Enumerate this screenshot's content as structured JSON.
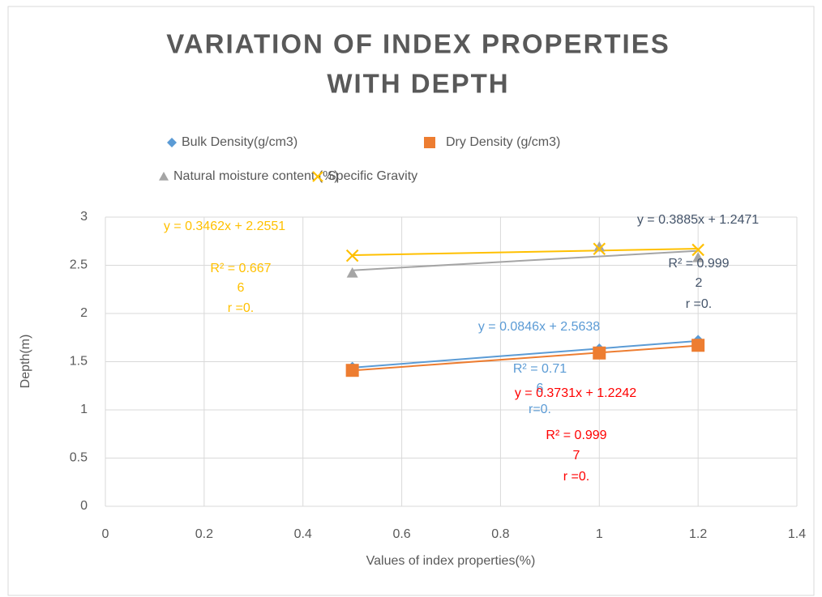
{
  "chart_data": {
    "type": "scatter",
    "title": [
      "VARIATION  OF INDEX PROPERTIES",
      "WITH DEPTH"
    ],
    "x_label": "Values of index properties(%)",
    "y_label": "Depth(m)",
    "x": [
      0.5,
      1,
      1.2
    ],
    "series": [
      {
        "name": "Bulk Density(g/cm3)",
        "color": "#5b9bd5",
        "marker": "diamond",
        "values": [
          1.44,
          1.63,
          1.72
        ]
      },
      {
        "name": "Dry Density (g/cm3)",
        "color": "#ed7d31",
        "marker": "square",
        "values": [
          1.41,
          1.59,
          1.67
        ]
      },
      {
        "name": "Natural moisture  content (%)",
        "color": "#a5a5a5",
        "marker": "triangle",
        "values": [
          2.42,
          2.69,
          2.58
        ]
      },
      {
        "name": "Specific Gravity",
        "color": "#ffc000",
        "marker": "x",
        "values": [
          2.6,
          2.67,
          2.66
        ]
      }
    ],
    "xlim": [
      0,
      1.4
    ],
    "xticks": [
      0,
      0.2,
      0.4,
      0.6,
      0.8,
      1,
      1.2,
      1.4
    ],
    "ylim": [
      0,
      3
    ],
    "yticks": [
      0,
      0.5,
      1,
      1.5,
      2,
      2.5,
      3
    ],
    "grid": true,
    "trendline": "linear",
    "annotations": [
      {
        "text": "y = 0.3462x + 2.2551",
        "color": "#ffc000"
      },
      {
        "text": "R² = 0.667",
        "color": "#ffc000"
      },
      {
        "text": "6",
        "color": "#ffc000"
      },
      {
        "text": "r =0.",
        "color": "#ffc000"
      },
      {
        "text": "y = 0.3885x + 1.2471",
        "color": "#44546a"
      },
      {
        "text": "R² = 0.999",
        "color": "#44546a"
      },
      {
        "text": "2",
        "color": "#44546a"
      },
      {
        "text": "r =0.",
        "color": "#44546a"
      },
      {
        "text": "y = 0.0846x + 2.5638",
        "color": "#5b9bd5"
      },
      {
        "text": "R² = 0.71",
        "color": "#5b9bd5"
      },
      {
        "text": "6",
        "color": "#5b9bd5"
      },
      {
        "text": "r=0.",
        "color": "#5b9bd5"
      },
      {
        "text": "y = 0.3731x + 1.2242",
        "color": "#ff0000"
      },
      {
        "text": "R² = 0.999",
        "color": "#ff0000"
      },
      {
        "text": "7",
        "color": "#ff0000"
      },
      {
        "text": "r =0.",
        "color": "#ff0000"
      }
    ]
  }
}
